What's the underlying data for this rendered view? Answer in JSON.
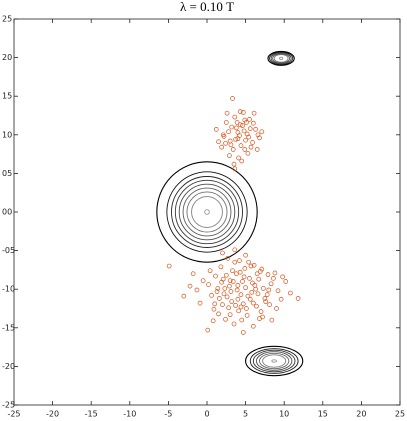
{
  "chart_data": {
    "type": "scatter",
    "title": "λ = 0.10 T",
    "xlim": [
      -25,
      25
    ],
    "ylim": [
      -25,
      25
    ],
    "xticks": [
      -25,
      -20,
      -15,
      -10,
      -5,
      0,
      5,
      10,
      15,
      20,
      25
    ],
    "yticks": [
      25,
      20,
      15,
      10,
      {
        "value": 5,
        "label": "05"
      },
      {
        "value": 0,
        "label": "00"
      },
      {
        "value": -5,
        "label": "-05"
      },
      -10,
      -15,
      -20,
      -25
    ],
    "series": [
      {
        "color": "#d95319",
        "x": [
          4.0,
          5.2,
          3.1,
          4.6,
          2.8,
          5.9,
          3.6,
          4.9,
          6.3,
          2.2,
          4.3,
          3.3,
          5.5,
          1.2,
          2.9,
          6.8,
          4.1,
          3.8,
          5.0,
          4.4,
          2.5,
          6.0,
          3.0,
          5.7,
          4.8,
          1.9,
          7.1,
          3.5,
          4.7,
          5.3,
          2.6,
          3.9,
          6.5,
          4.2,
          5.6,
          3.4,
          4.5,
          2.1,
          5.1,
          3.7,
          6.1,
          4.0,
          1.5,
          5.4,
          3.2,
          4.9,
          2.4,
          6.6,
          3.6,
          4.3
        ],
        "y": [
          9.5,
          10.1,
          8.7,
          11.2,
          10.4,
          9.0,
          12.3,
          8.1,
          10.7,
          9.8,
          13.0,
          14.7,
          12.0,
          10.7,
          7.3,
          9.6,
          7.0,
          10.9,
          9.3,
          8.6,
          11.6,
          11.5,
          9.2,
          8.4,
          10.5,
          8.4,
          10.4,
          6.2,
          12.9,
          7.6,
          12.8,
          11.6,
          8.1,
          9.9,
          10.8,
          8.1,
          6.6,
          10.0,
          11.6,
          9.4,
          12.8,
          10.3,
          9.1,
          9.7,
          11.0,
          11.9,
          8.9,
          10.0,
          5.6,
          11.3
        ]
      },
      {
        "color": "#d95319",
        "x": [
          4.0,
          2.5,
          5.8,
          3.2,
          6.7,
          1.4,
          4.9,
          0.6,
          7.5,
          3.6,
          5.1,
          2.0,
          8.3,
          -0.5,
          4.4,
          6.1,
          3.0,
          9.2,
          1.8,
          5.5,
          2.9,
          7.0,
          -1.3,
          4.7,
          6.3,
          3.8,
          0.9,
          8.8,
          5.0,
          2.2,
          6.8,
          3.4,
          10.2,
          1.1,
          4.5,
          7.8,
          2.7,
          5.9,
          -2.2,
          4.1,
          6.5,
          1.6,
          8.1,
          3.3,
          5.3,
          0.2,
          7.3,
          2.4,
          4.8,
          9.6,
          3.1,
          6.0,
          -0.9,
          5.7,
          1.9,
          7.1,
          4.2,
          2.6,
          8.6,
          3.7,
          6.4,
          0.4,
          5.2,
          2.1,
          7.6,
          4.6,
          -1.8,
          10.8,
          3.5,
          6.2,
          1.3,
          8.0,
          4.3,
          2.8,
          5.6,
          -3.0,
          7.9,
          3.9,
          0.8,
          6.6,
          2.3,
          9.0,
          4.0,
          5.4,
          1.0,
          7.2,
          3.0,
          6.9,
          11.8,
          -4.9,
          4.7,
          0.1,
          3.6,
          8.4,
          2.0,
          9.8,
          5.0,
          1.5,
          6.0,
          4.4
        ],
        "y": [
          -9.5,
          -8.2,
          -10.4,
          -11.6,
          -8.7,
          -9.9,
          -7.3,
          -10.8,
          -11.2,
          -6.5,
          -12.5,
          -12.0,
          -9.3,
          -8.9,
          -10.7,
          -6.9,
          -13.3,
          -10.2,
          -7.1,
          -8.6,
          -9.6,
          -12.9,
          -10.1,
          -11.9,
          -10.0,
          -8.0,
          -12.6,
          -7.9,
          -5.6,
          -10.6,
          -13.8,
          -9.0,
          -9.0,
          -8.3,
          -14.0,
          -10.7,
          -6.0,
          -9.2,
          -9.6,
          -12.8,
          -8.0,
          -11.2,
          -12.0,
          -7.6,
          -10.9,
          -9.4,
          -9.9,
          -13.9,
          -8.4,
          -11.3,
          -10.3,
          -11.8,
          -11.8,
          -7.0,
          -9.1,
          -7.4,
          -6.3,
          -11.0,
          -8.6,
          -12.1,
          -12.2,
          -7.6,
          -13.4,
          -8.7,
          -11.6,
          -9.0,
          -8.0,
          -10.5,
          -14.5,
          -9.5,
          -10.3,
          -10.1,
          -7.8,
          -12.4,
          -11.3,
          -10.9,
          -8.1,
          -10.1,
          -14.1,
          -10.6,
          -9.9,
          -12.5,
          -11.3,
          -6.5,
          -11.9,
          -13.6,
          -8.9,
          -7.7,
          -11.2,
          -7.0,
          -15.6,
          -15.3,
          -4.9,
          -14.0,
          -5.3,
          -8.4,
          -9.8,
          -13.2,
          -14.8,
          -12.3
        ]
      }
    ],
    "contours": [
      {
        "center": [
          0,
          0
        ],
        "rx": [
          0.3,
          2.0,
          2.6,
          3.1,
          3.6,
          4.1,
          4.6,
          5.2,
          6.5
        ],
        "ry": [
          0.3,
          2.0,
          2.6,
          3.1,
          3.6,
          4.1,
          4.6,
          5.2,
          6.5
        ]
      },
      {
        "center": [
          9.6,
          19.9
        ],
        "rx": [
          0.2,
          0.9,
          1.1,
          1.3,
          1.5,
          1.7
        ],
        "ry": [
          0.15,
          0.5,
          0.6,
          0.7,
          0.8,
          0.9
        ]
      },
      {
        "center": [
          8.7,
          -19.3
        ],
        "rx": [
          0.3,
          1.5,
          1.9,
          2.3,
          2.7,
          3.1,
          3.7
        ],
        "ry": [
          0.15,
          0.8,
          1.0,
          1.2,
          1.4,
          1.6,
          1.9
        ]
      }
    ]
  }
}
